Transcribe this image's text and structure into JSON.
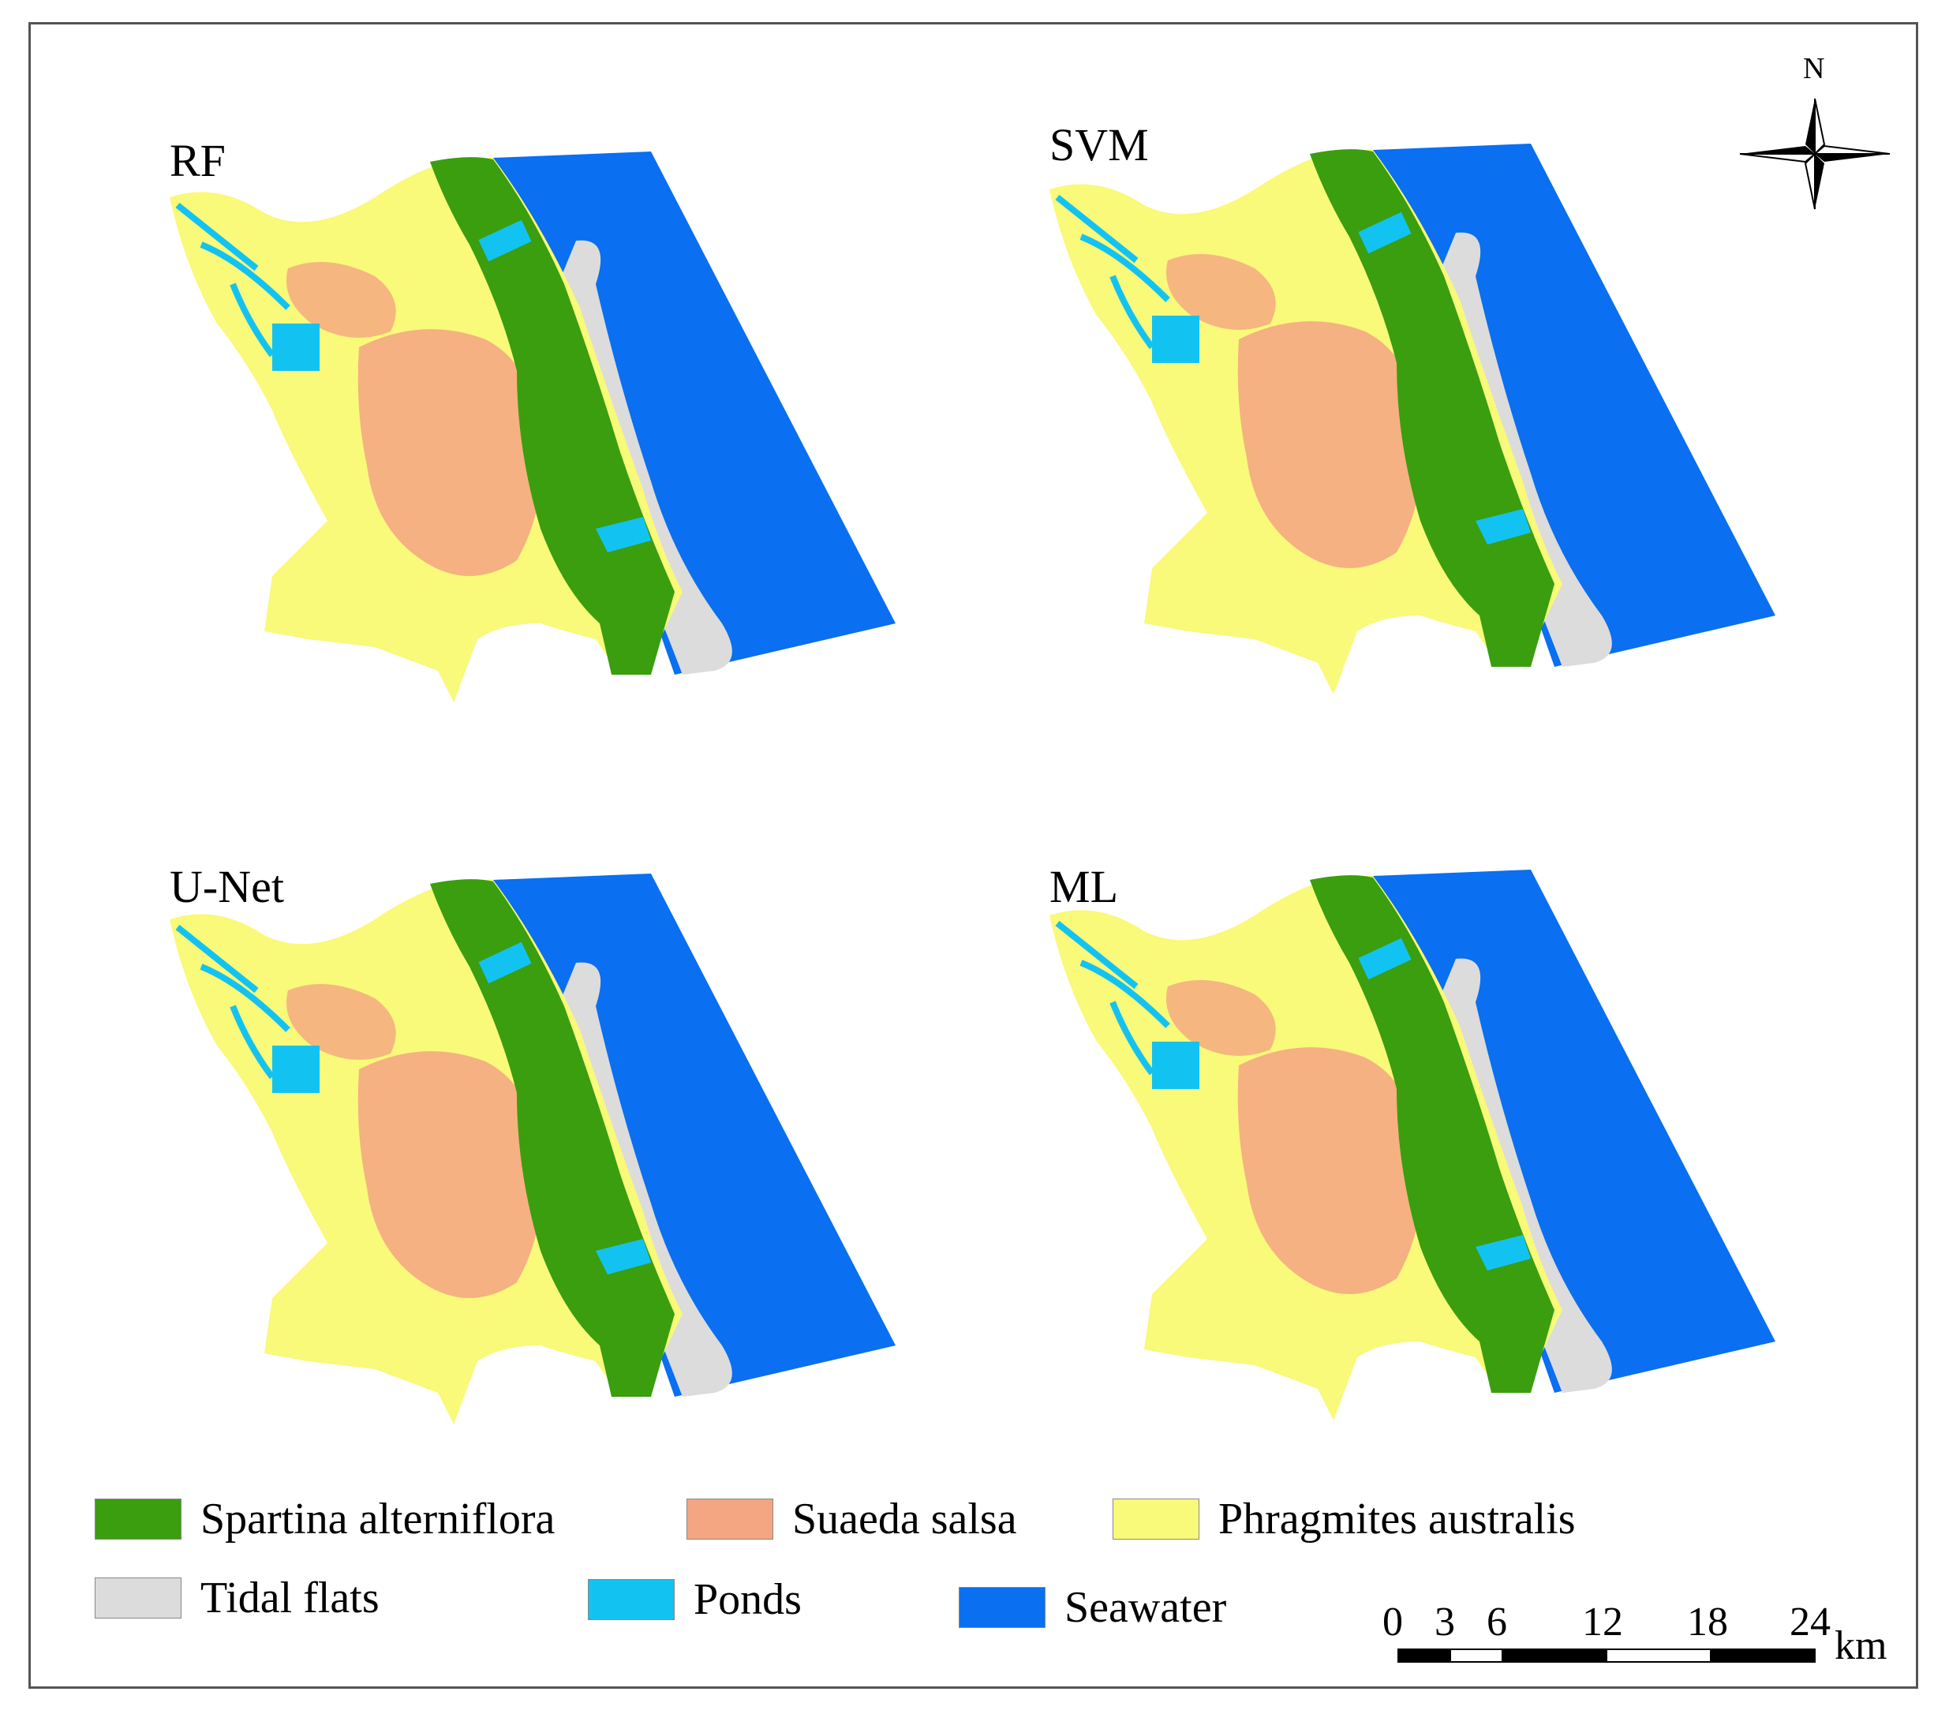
{
  "panels": [
    {
      "label": "RF"
    },
    {
      "label": "SVM"
    },
    {
      "label": "U-Net"
    },
    {
      "label": "ML"
    }
  ],
  "legend": [
    {
      "label": "Spartina alterniflora",
      "color": "#3a9e0e"
    },
    {
      "label": "Suaeda salsa",
      "color": "#f4a582"
    },
    {
      "label": "Phragmites australis",
      "color": "#f9f97a"
    },
    {
      "label": "Tidal flats",
      "color": "#dcdcdc"
    },
    {
      "label": "Ponds",
      "color": "#12c3f2"
    },
    {
      "label": "Seawater",
      "color": "#0a6ff0"
    }
  ],
  "north_arrow": {
    "label": "N"
  },
  "scale_bar": {
    "ticks": [
      "0",
      "3",
      "6",
      "12",
      "18",
      "24"
    ],
    "unit": "km"
  }
}
